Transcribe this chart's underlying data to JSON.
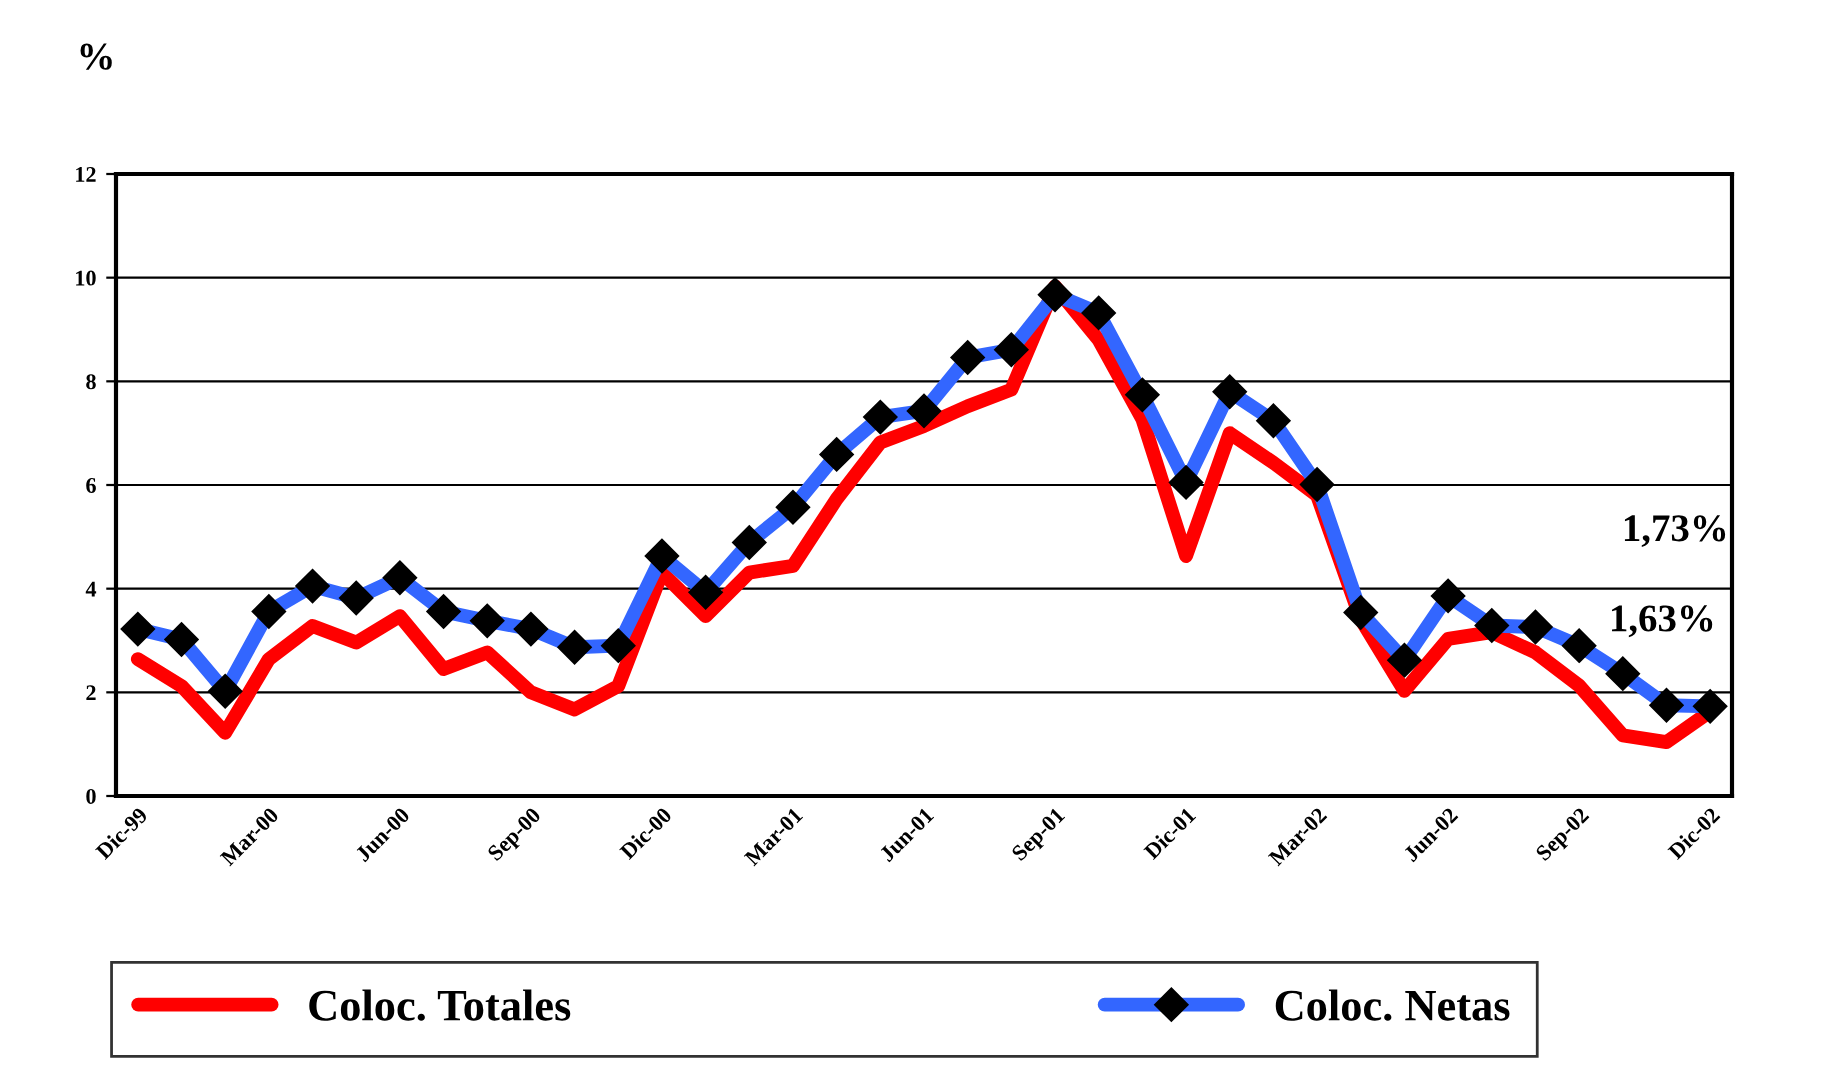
{
  "chart_data": {
    "type": "line",
    "ylabel": "%",
    "categories": [
      "Dic-99",
      null,
      null,
      "Mar-00",
      null,
      null,
      "Jun-00",
      null,
      null,
      "Sep-00",
      null,
      null,
      "Dic-00",
      null,
      null,
      "Mar-01",
      null,
      null,
      "Jun-01",
      null,
      null,
      "Sep-01",
      null,
      null,
      "Dic-01",
      null,
      null,
      "Mar-02",
      null,
      null,
      "Jun-02",
      null,
      null,
      "Sep-02",
      null,
      null,
      "Dic-02"
    ],
    "series": [
      {
        "name": "Coloc. Totales",
        "color": "#ff0000",
        "marker": "none",
        "values": [
          2.64,
          2.12,
          1.22,
          2.64,
          3.28,
          2.96,
          3.47,
          2.45,
          2.77,
          2.0,
          1.67,
          2.12,
          4.31,
          3.47,
          4.31,
          4.44,
          5.73,
          6.82,
          7.14,
          7.52,
          7.84,
          9.83,
          8.8,
          7.27,
          4.63,
          7.0,
          6.43,
          5.8,
          3.41,
          2.03,
          3.03,
          3.16,
          2.77,
          2.13,
          1.17,
          1.04,
          1.63
        ]
      },
      {
        "name": "Coloc. Netas",
        "color": "#3366ff",
        "marker": "diamond",
        "values": [
          3.22,
          3.02,
          2.02,
          3.56,
          4.05,
          3.82,
          4.21,
          3.56,
          3.38,
          3.22,
          2.87,
          2.9,
          4.63,
          3.93,
          4.89,
          5.57,
          6.59,
          7.31,
          7.43,
          8.46,
          8.61,
          9.67,
          9.32,
          7.74,
          6.05,
          7.8,
          7.24,
          6.01,
          3.54,
          2.62,
          3.86,
          3.29,
          3.26,
          2.9,
          2.36,
          1.75,
          1.73
        ]
      }
    ],
    "ylim": [
      0,
      12
    ],
    "yticks": [
      0,
      2,
      4,
      6,
      8,
      10,
      12
    ],
    "grid": "y",
    "legend": "bottom",
    "line_style": "solid",
    "annotations": [
      "1,73%",
      "1,63%"
    ]
  }
}
